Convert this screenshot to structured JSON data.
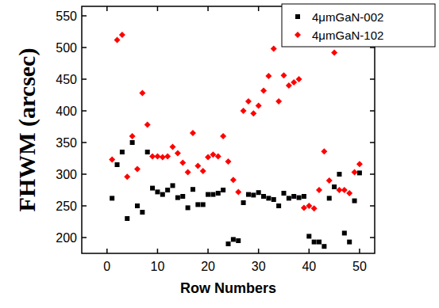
{
  "chart_data": {
    "type": "scatter",
    "x_label": "Row Numbers",
    "y_label": "FHWM (arcsec)",
    "xlim": [
      -5,
      53
    ],
    "xticks": [
      0,
      10,
      20,
      30,
      40,
      50
    ],
    "ylim": [
      175,
      565
    ],
    "yticks": [
      200,
      250,
      300,
      350,
      400,
      450,
      500,
      550
    ],
    "grid": false,
    "legend": "top-right",
    "series": [
      {
        "name": "4μmGaN-002",
        "color": "#000000",
        "marker": "square",
        "x": [
          1,
          2,
          3,
          4,
          5,
          6,
          7,
          8,
          9,
          10,
          11,
          12,
          13,
          14,
          15,
          16,
          17,
          18,
          19,
          20,
          21,
          22,
          23,
          24,
          25,
          26,
          27,
          28,
          29,
          30,
          31,
          32,
          33,
          34,
          35,
          36,
          37,
          38,
          39,
          40,
          41,
          42,
          43,
          44,
          45,
          46,
          47,
          48,
          49,
          50
        ],
        "values": [
          262,
          315,
          335,
          230,
          350,
          250,
          240,
          335,
          278,
          272,
          268,
          275,
          282,
          263,
          265,
          247,
          276,
          252,
          252,
          268,
          268,
          270,
          275,
          190,
          197,
          195,
          255,
          268,
          267,
          271,
          265,
          262,
          260,
          250,
          270,
          262,
          265,
          263,
          265,
          202,
          193,
          193,
          186,
          262,
          280,
          300,
          207,
          193,
          258,
          302
        ]
      },
      {
        "name": "4μmGaN-102",
        "color": "#ff0000",
        "marker": "diamond",
        "x": [
          1,
          2,
          3,
          4,
          5,
          6,
          7,
          8,
          9,
          10,
          11,
          12,
          13,
          14,
          15,
          16,
          17,
          18,
          19,
          20,
          21,
          22,
          23,
          24,
          25,
          26,
          27,
          28,
          29,
          30,
          31,
          32,
          33,
          34,
          35,
          36,
          37,
          38,
          39,
          40,
          41,
          42,
          43,
          44,
          45,
          46,
          47,
          48,
          49,
          50
        ],
        "values": [
          323,
          512,
          520,
          296,
          360,
          308,
          428,
          378,
          328,
          328,
          327,
          328,
          343,
          333,
          318,
          303,
          365,
          313,
          305,
          327,
          331,
          328,
          360,
          320,
          291,
          272,
          400,
          415,
          396,
          408,
          432,
          455,
          498,
          415,
          456,
          440,
          445,
          450,
          247,
          250,
          246,
          275,
          336,
          290,
          492,
          275,
          275,
          270,
          303,
          316
        ]
      }
    ]
  }
}
